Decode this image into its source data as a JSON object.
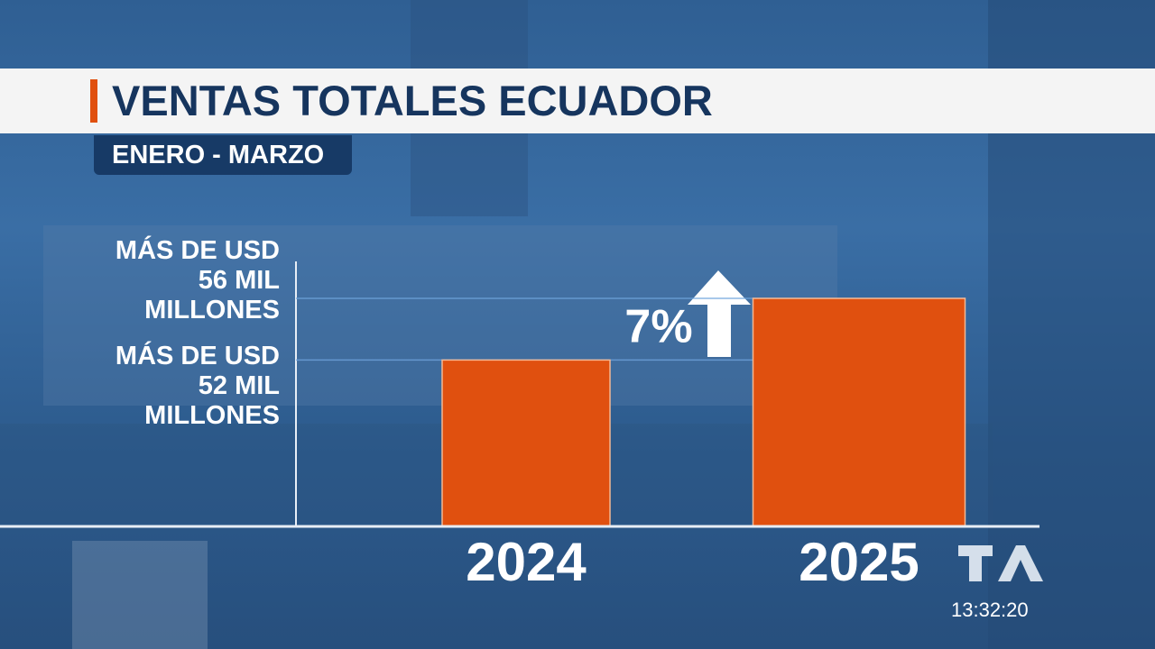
{
  "chart_data": {
    "type": "bar",
    "title": "VENTAS TOTALES ECUADOR",
    "subtitle": "ENERO - MARZO",
    "categories": [
      "2024",
      "2025"
    ],
    "values": [
      52,
      56
    ],
    "color": "#e0500f",
    "ylim": [
      41.2,
      58.4
    ],
    "yticks": [
      {
        "value": 52,
        "label": "MÁS DE USD 52 MIL MILLONES"
      },
      {
        "value": 56,
        "label": "MÁS DE USD 56 MIL MILLONES"
      }
    ],
    "grid": true,
    "annotation": "7%"
  },
  "overlay": {
    "clock": "13:32:20"
  }
}
